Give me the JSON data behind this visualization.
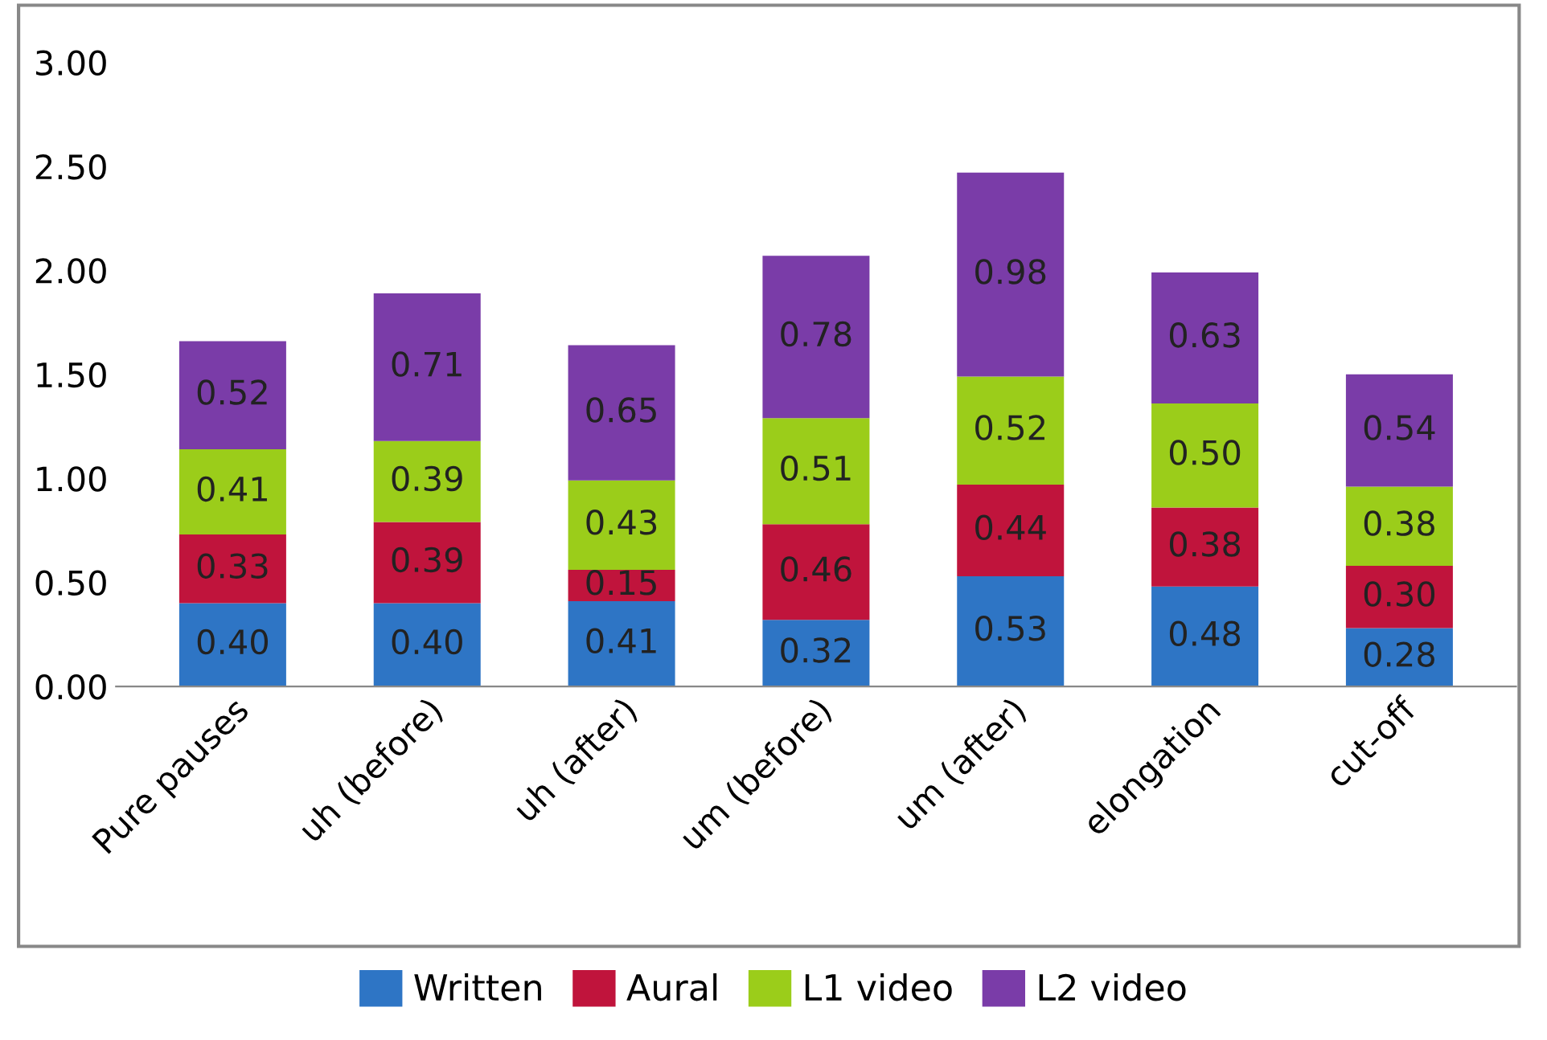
{
  "chart_data": {
    "type": "bar",
    "stacked": true,
    "categories": [
      "Pure pauses",
      "uh (before)",
      "uh (after)",
      "um (before)",
      "um (after)",
      "elongation",
      "cut-off"
    ],
    "series": [
      {
        "name": "Written",
        "color": "#2e75c5",
        "values": [
          0.4,
          0.4,
          0.41,
          0.32,
          0.53,
          0.48,
          0.28
        ],
        "value_labels": [
          "0.40",
          "0.40",
          "0.41",
          "0.32",
          "0.53",
          "0.48",
          "0.28"
        ]
      },
      {
        "name": "Aural",
        "color": "#c0143c",
        "values": [
          0.33,
          0.39,
          0.15,
          0.46,
          0.44,
          0.38,
          0.3
        ],
        "value_labels": [
          "0.33",
          "0.39",
          "0.15",
          "0.46",
          "0.44",
          "0.38",
          "0.30"
        ]
      },
      {
        "name": "L1 video",
        "color": "#9bcd1a",
        "values": [
          0.41,
          0.39,
          0.43,
          0.51,
          0.52,
          0.5,
          0.38
        ],
        "value_labels": [
          "0.41",
          "0.39",
          "0.43",
          "0.51",
          "0.52",
          "0.50",
          "0.38"
        ]
      },
      {
        "name": "L2 video",
        "color": "#7a3ca8",
        "values": [
          0.52,
          0.71,
          0.65,
          0.78,
          0.98,
          0.63,
          0.54
        ],
        "value_labels": [
          "0.52",
          "0.71",
          "0.65",
          "0.78",
          "0.98",
          "0.63",
          "0.54"
        ]
      }
    ],
    "ylim": [
      0,
      3
    ],
    "yticks": [
      {
        "value": 0,
        "label": "0.00"
      },
      {
        "value": 0.5,
        "label": "0.50"
      },
      {
        "value": 1,
        "label": "1.00"
      },
      {
        "value": 1.5,
        "label": "1.50"
      },
      {
        "value": 2,
        "label": "2.00"
      },
      {
        "value": 2.5,
        "label": "2.50"
      },
      {
        "value": 3,
        "label": "3.00"
      }
    ],
    "grid": false,
    "legend": "bottom"
  }
}
